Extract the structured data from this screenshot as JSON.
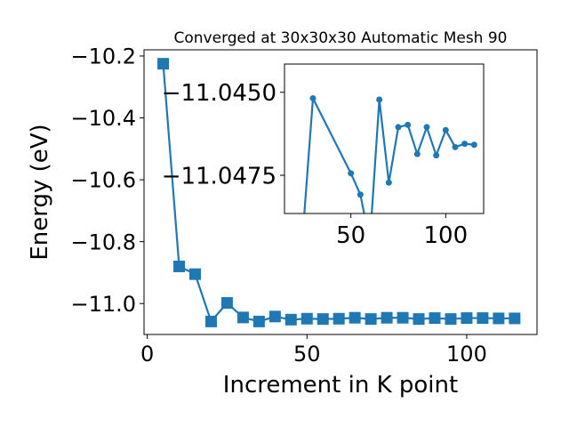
{
  "chart_data": [
    {
      "type": "line",
      "title": "Converged at 30x30x30 Automatic Mesh 90",
      "xlabel": "Increment in K point",
      "ylabel": "Energy (eV)",
      "xlim": [
        -1,
        122
      ],
      "ylim": [
        -11.1,
        -10.18
      ],
      "xticks": [
        0,
        50,
        100
      ],
      "xtick_labels": [
        "0",
        "50",
        "100"
      ],
      "yticks": [
        -10.2,
        -10.4,
        -10.6,
        -10.8,
        -11.0
      ],
      "ytick_labels": [
        "−10.2",
        "−10.4",
        "−10.6",
        "−10.8",
        "−11.0"
      ],
      "marker": "square",
      "color": "#1f77b4",
      "series": [
        {
          "x": [
            5,
            10,
            15,
            20,
            25,
            30,
            35,
            40,
            45,
            50,
            55,
            60,
            65,
            70,
            75,
            80,
            85,
            90,
            95,
            100,
            105,
            110,
            115
          ],
          "y": [
            -10.225,
            -10.88,
            -10.905,
            -11.058,
            -10.998,
            -11.045,
            -11.058,
            -11.042,
            -11.052,
            -11.049,
            -11.05,
            -11.049,
            -11.046,
            -11.05,
            -11.046,
            -11.046,
            -11.05,
            -11.047,
            -11.05,
            -11.047,
            -11.047,
            -11.048,
            -11.048
          ]
        }
      ]
    },
    {
      "type": "line",
      "title": "",
      "xlabel": "",
      "ylabel": "",
      "inset": true,
      "xlim": [
        15,
        120
      ],
      "ylim": [
        -11.04865,
        -11.04415
      ],
      "xticks": [
        50,
        100
      ],
      "xtick_labels": [
        "50",
        "100"
      ],
      "yticks": [
        -11.0475,
        -11.045
      ],
      "ytick_labels": [
        "−11.0475",
        "−11.0450"
      ],
      "marker": "circle",
      "color": "#1f77b4",
      "series": [
        {
          "x": [
            25,
            30,
            50,
            55,
            60,
            65,
            70,
            75,
            80,
            85,
            90,
            95,
            100,
            105,
            110,
            115
          ],
          "y": [
            -11.049,
            -11.04518,
            -11.04744,
            -11.04808,
            -11.0495,
            -11.04522,
            -11.04772,
            -11.04605,
            -11.04598,
            -11.04686,
            -11.04605,
            -11.0469,
            -11.04614,
            -11.04665,
            -11.04655,
            -11.04658
          ]
        }
      ]
    }
  ]
}
